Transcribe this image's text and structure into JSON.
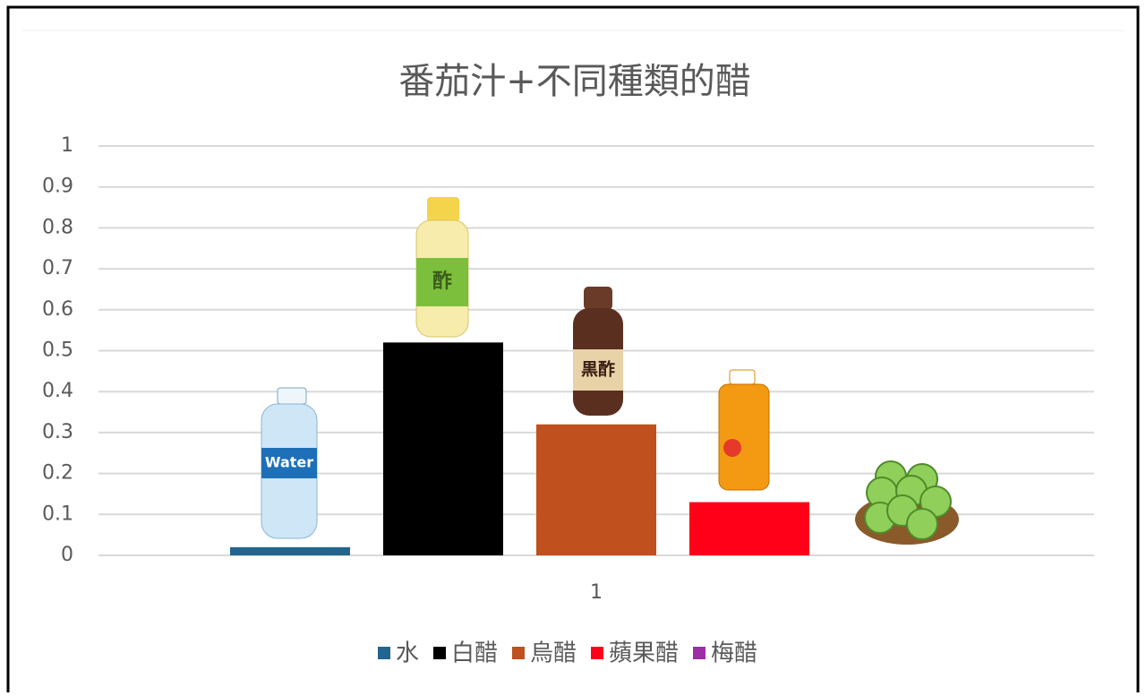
{
  "chart_data": {
    "type": "bar",
    "title": "番茄汁+不同種類的醋",
    "categories": [
      "1"
    ],
    "series": [
      {
        "name": "水",
        "color": "#22668f",
        "values": [
          0.02
        ]
      },
      {
        "name": "白醋",
        "color": "#000000",
        "values": [
          0.52
        ]
      },
      {
        "name": "烏醋",
        "color": "#c0501d",
        "values": [
          0.32
        ]
      },
      {
        "name": "蘋果醋",
        "color": "#ff0018",
        "values": [
          0.13
        ]
      },
      {
        "name": "梅醋",
        "color": "#9d2ea6",
        "values": [
          0
        ]
      }
    ],
    "ylim": [
      0,
      1
    ],
    "yticks": [
      0,
      0.1,
      0.2,
      0.3,
      0.4,
      0.5,
      0.6,
      0.7,
      0.8,
      0.9,
      1
    ],
    "grid": true,
    "legend": "bottom",
    "illustration_labels": [
      "Water",
      "酢",
      "黒酢"
    ]
  }
}
